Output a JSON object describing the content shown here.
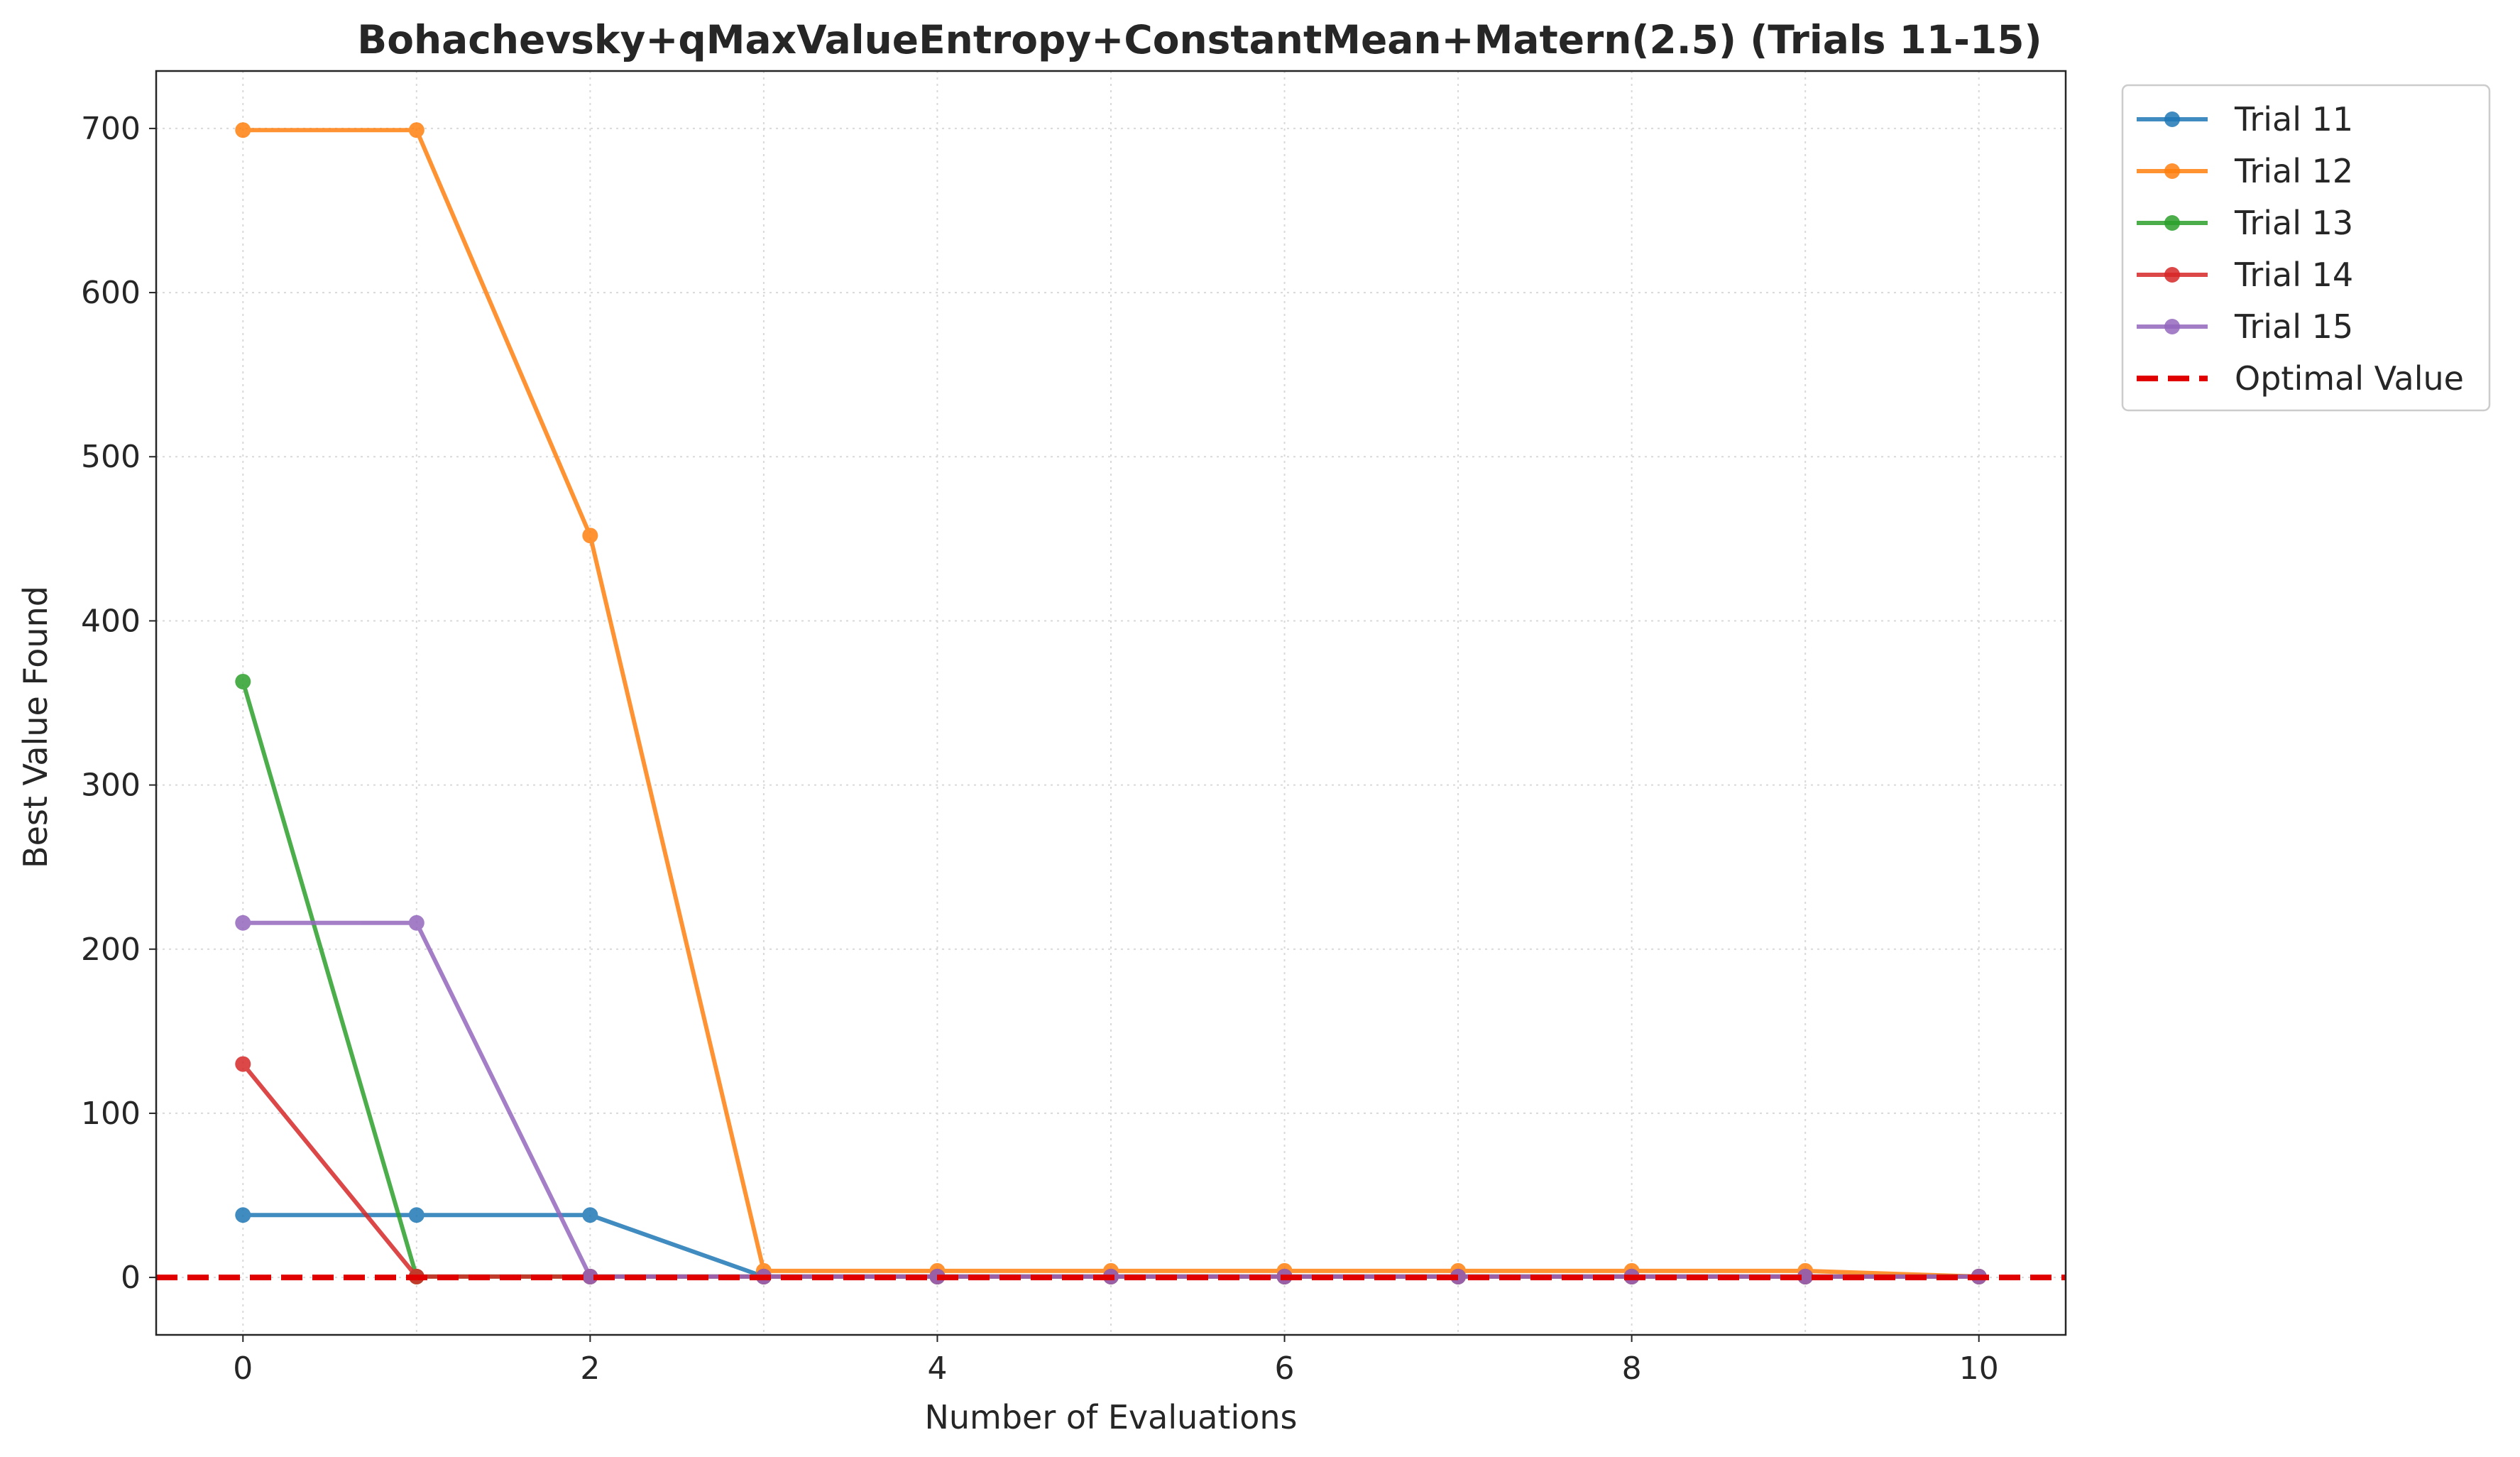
{
  "chart_data": {
    "type": "line",
    "title": "Bohachevsky+qMaxValueEntropy+ConstantMean+Matern(2.5) (Trials 11-15)",
    "xlabel": "Number of Evaluations",
    "ylabel": "Best Value Found",
    "xlim": [
      -0.5,
      10.5
    ],
    "ylim": [
      -35,
      735
    ],
    "xticks": [
      0,
      2,
      4,
      6,
      8,
      10
    ],
    "yticks": [
      0,
      100,
      200,
      300,
      400,
      500,
      600,
      700
    ],
    "grid": true,
    "legend_position": "outside upper right",
    "x": [
      0,
      1,
      2,
      3,
      4,
      5,
      6,
      7,
      8,
      9,
      10
    ],
    "series": [
      {
        "name": "Trial 11",
        "color": "#1f77b4",
        "values": [
          38,
          38,
          38,
          0.5,
          0.5,
          0.5,
          0.5,
          0.5,
          0.5,
          0.5,
          0.5
        ]
      },
      {
        "name": "Trial 12",
        "color": "#ff7f0e",
        "values": [
          699,
          699,
          452,
          4,
          4,
          4,
          4,
          4,
          4,
          4,
          0.5
        ]
      },
      {
        "name": "Trial 13",
        "color": "#2ca02c",
        "values": [
          363,
          0.5,
          0.5,
          0.5,
          0.5,
          0.5,
          0.5,
          0.5,
          0.5,
          0.5,
          0.5
        ]
      },
      {
        "name": "Trial 14",
        "color": "#d62728",
        "values": [
          130,
          0.5,
          0.5,
          0.5,
          0.5,
          0.5,
          0.5,
          0.5,
          0.5,
          0.5,
          0.5
        ]
      },
      {
        "name": "Trial 15",
        "color": "#9467bd",
        "values": [
          216,
          216,
          0.5,
          0.5,
          0.5,
          0.5,
          0.5,
          0.5,
          0.5,
          0.5,
          0.5
        ]
      }
    ],
    "reference_line": {
      "name": "Optimal Value",
      "value": 0,
      "color": "#e00000",
      "style": "dashed"
    }
  }
}
